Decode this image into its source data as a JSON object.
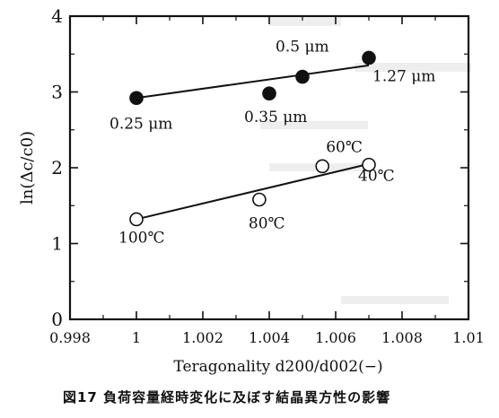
{
  "figure": {
    "caption": "図17 負荷容量経時変化に及ぼす結晶異方性の影響"
  },
  "chart_data": {
    "type": "line",
    "title": "",
    "xlabel": "Teragonality d200/d002(−)",
    "ylabel": "ln(Δc/c0)",
    "xlim": [
      0.998,
      1.01
    ],
    "ylim": [
      0,
      4
    ],
    "x_ticks": [
      0.998,
      1.0,
      1.002,
      1.004,
      1.006,
      1.008,
      1.01
    ],
    "y_ticks": [
      0,
      1,
      2,
      3,
      4
    ],
    "x_tick_labels": [
      "0.998",
      "1",
      "1.002",
      "1.004",
      "1.006",
      "1.008",
      "1.01"
    ],
    "y_tick_labels": [
      "0",
      "1",
      "2",
      "3",
      "4"
    ],
    "grid": false,
    "legend": "none",
    "series": [
      {
        "marker": "filled-circle",
        "color": "#111111",
        "x": [
          1.0,
          1.004,
          1.005,
          1.007
        ],
        "y": [
          2.92,
          2.98,
          3.2,
          3.45
        ],
        "labels": [
          "0.25 μm",
          "0.35 μm",
          "0.5 μm",
          "1.27 μm"
        ],
        "fit": {
          "x": [
            1.0,
            1.007
          ],
          "y": [
            2.92,
            3.35
          ]
        }
      },
      {
        "marker": "open-circle",
        "color": "#111111",
        "x": [
          1.0,
          1.0037,
          1.0056,
          1.007
        ],
        "y": [
          1.32,
          1.58,
          2.02,
          2.04
        ],
        "labels": [
          "100℃",
          "80℃",
          "60℃",
          "40℃"
        ],
        "fit": {
          "x": [
            1.0,
            1.007
          ],
          "y": [
            1.32,
            2.05
          ]
        }
      }
    ]
  }
}
